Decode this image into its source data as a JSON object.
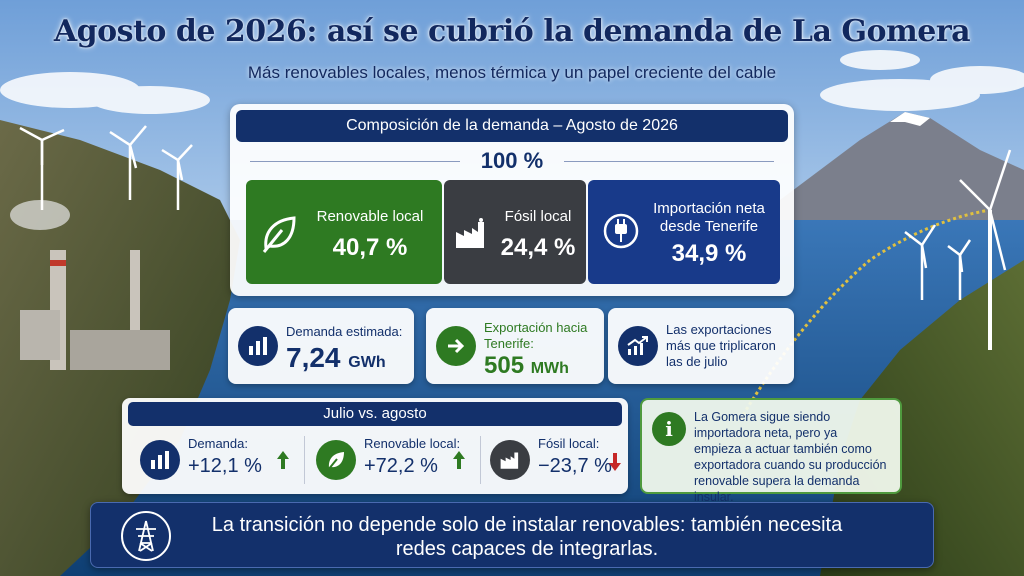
{
  "title": "Agosto de 2026: así se cubrió la demanda de La Gomera",
  "subtitle": "Más renovables locales, menos térmica y un papel creciente del cable",
  "composition": {
    "header": "Composición de la demanda – Agosto de 2026",
    "total": "100 %",
    "segments": [
      {
        "label": "Renovable local",
        "value": "40,7 %",
        "share": 40.7,
        "color": "#2e7a22",
        "icon": "leaf-icon"
      },
      {
        "label": "Fósil local",
        "value": "24,4 %",
        "share": 24.4,
        "color": "#3a3d42",
        "icon": "factory-icon"
      },
      {
        "label": "Importación neta desde Tenerife",
        "label_line1": "Importación neta",
        "label_line2": "desde Tenerife",
        "value": "34,9 %",
        "share": 34.9,
        "color": "#183a8a",
        "icon": "plug-icon"
      }
    ]
  },
  "cards": {
    "demand": {
      "label": "Demanda estimada:",
      "value": "7,24",
      "unit": "GWh",
      "icon": "bar-chart-icon"
    },
    "export": {
      "label_line1": "Exportación hacia",
      "label_line2": "Tenerife:",
      "value": "505",
      "unit": "MWh",
      "icon": "arrow-right-icon"
    },
    "trend": {
      "line1": "Las exportaciones",
      "line2": "más que triplicaron",
      "line3": "las de julio",
      "icon": "trend-up-icon"
    }
  },
  "july_vs_august": {
    "header": "Julio vs. agosto",
    "items": [
      {
        "label": "Demanda:",
        "value": "+12,1 %",
        "direction": "up",
        "icon": "bar-chart-icon"
      },
      {
        "label": "Renovable local:",
        "value": "+72,2 %",
        "direction": "up",
        "icon": "leaf-icon"
      },
      {
        "label": "Fósil local:",
        "value": "−23,7 %",
        "direction": "down",
        "icon": "factory-icon"
      }
    ]
  },
  "note": {
    "icon": "info-icon",
    "lines": [
      "La Gomera sigue siendo",
      "importadora neta, pero ya",
      "empieza a actuar también como",
      "exportadora cuando su producción",
      "renovable supera la demanda insular."
    ]
  },
  "banner": {
    "icon": "power-tower-icon",
    "line1": "La transición no depende solo de instalar renovables: también necesita",
    "line2": "redes capaces de integrarlas."
  },
  "colors": {
    "navy": "#13306b",
    "green": "#2e7a22",
    "dark": "#3a3d42",
    "blue": "#183a8a",
    "up_arrow": "#2e7a22",
    "down_arrow": "#c62828"
  }
}
